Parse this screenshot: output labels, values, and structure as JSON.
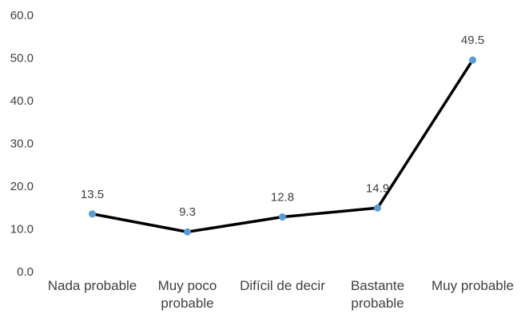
{
  "chart_data": {
    "type": "line",
    "categories": [
      [
        "Nada probable"
      ],
      [
        "Muy poco",
        "probable"
      ],
      [
        "Difícil de decir"
      ],
      [
        "Bastante",
        "probable"
      ],
      [
        "Muy probable"
      ]
    ],
    "values": [
      13.5,
      9.3,
      12.8,
      14.9,
      49.5
    ],
    "data_labels": [
      "13.5",
      "9.3",
      "12.8",
      "14.9",
      "49.5"
    ],
    "y_ticks": [
      "0.0",
      "10.0",
      "20.0",
      "30.0",
      "40.0",
      "50.0",
      "60.0"
    ],
    "ylim": [
      0,
      60
    ],
    "title": "",
    "xlabel": "",
    "ylabel": "",
    "grid": false,
    "legend": "none",
    "colors": {
      "line": "#000000",
      "marker": "#5B9BD5",
      "text": "#404040"
    }
  }
}
